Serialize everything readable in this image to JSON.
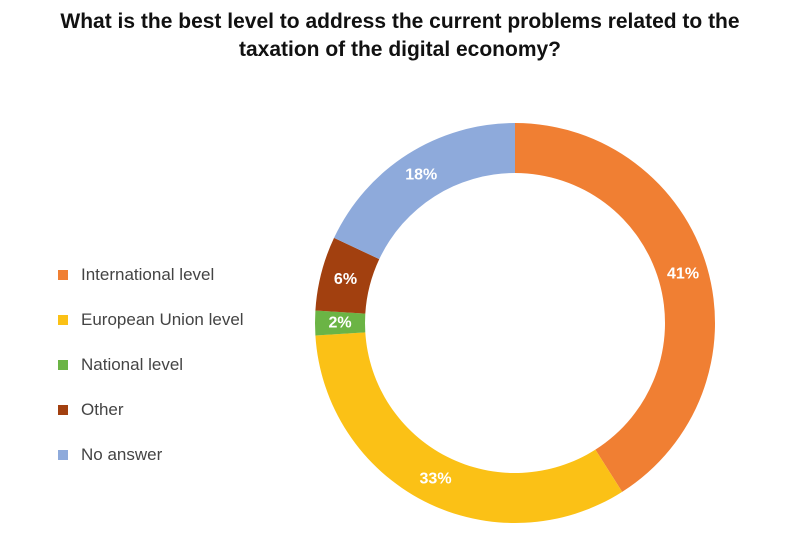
{
  "chart_data": {
    "type": "pie",
    "donut": true,
    "title_lines": [
      "What is the best level to address the current problems related to the",
      "taxation of the digital economy?"
    ],
    "legend_position": "left",
    "categories": [
      "International level",
      "European Union level",
      "National level",
      "Other",
      "No answer"
    ],
    "values": [
      41,
      33,
      2,
      6,
      18
    ],
    "data_labels": [
      "41%",
      "33%",
      "2%",
      "6%",
      "18%"
    ],
    "colors": [
      "#f07f33",
      "#fbc116",
      "#6bb445",
      "#a2400f",
      "#8eaadb"
    ]
  }
}
